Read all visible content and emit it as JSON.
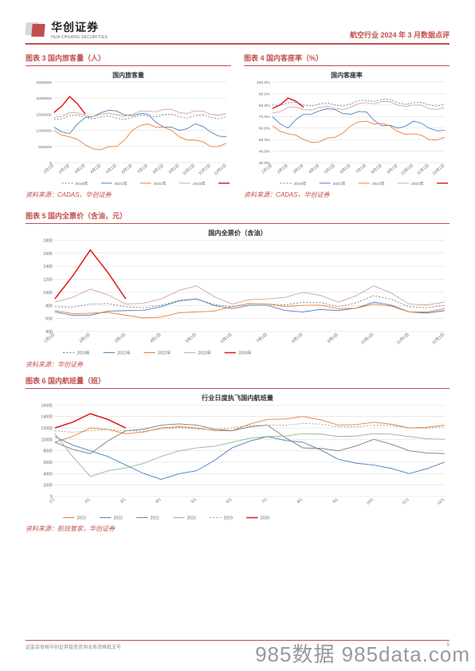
{
  "header": {
    "logo_cn": "华创证券",
    "logo_en": "HUA CHUANG SECURITIES",
    "doc_title": "航空行业 2024 年 3 月数据点评"
  },
  "footer": {
    "left_text": "证监会审核华创证券投资咨询业务资格批文号",
    "page_number": "5"
  },
  "watermark": {
    "text": "985数据 985data.com"
  },
  "colors": {
    "accent": "#c0504d",
    "grid": "#d9d9d9",
    "bg": "#ffffff",
    "s2019": "#7f7f7f",
    "s2020": "#8fbb8b",
    "s2021": "#4f81bd",
    "s2022": "#ed7d31",
    "s2023": "#d4a6a6",
    "s2024": "#e41a1c"
  },
  "chart3": {
    "fig_label": "图表 3  国内旅客量（人）",
    "type": "line",
    "title": "国内旅客量",
    "title_fontsize": 8,
    "label_fontsize": 5,
    "y_min": 0,
    "y_max": 2500000,
    "y_step": 500000,
    "y_ticks": [
      "0",
      "500000",
      "1000000",
      "1500000",
      "2000000",
      "2500000"
    ],
    "x_labels": [
      "1月1日",
      "2月1日",
      "3月1日",
      "4月1日",
      "5月1日",
      "6月1日",
      "7月1日",
      "8月1日",
      "9月1日",
      "10月1日",
      "11月1日",
      "12月1日"
    ],
    "series": [
      {
        "name": "2019年",
        "color": "#7f7f7f",
        "dash": "2,2",
        "data": [
          1350000,
          1450000,
          1400000,
          1420000,
          1380000,
          1400000,
          1450000,
          1480000,
          1420000,
          1450000,
          1400000,
          1420000
        ]
      },
      {
        "name": "2021年",
        "color": "#4f81bd",
        "dash": "0",
        "data": [
          1100000,
          900000,
          1400000,
          1550000,
          1600000,
          1450000,
          1500000,
          1100000,
          1000000,
          1200000,
          950000,
          800000
        ]
      },
      {
        "name": "2022年",
        "color": "#ed7d31",
        "dash": "0",
        "data": [
          1000000,
          800000,
          550000,
          400000,
          500000,
          1000000,
          1200000,
          1100000,
          800000,
          700000,
          500000,
          600000
        ]
      },
      {
        "name": "2023年",
        "color": "#d4a6a6",
        "dash": "0",
        "data": [
          1400000,
          1550000,
          1450000,
          1500000,
          1480000,
          1500000,
          1600000,
          1650000,
          1550000,
          1600000,
          1500000,
          1520000
        ]
      },
      {
        "name": "2024年",
        "color": "#e41a1c",
        "dash": "0",
        "width": 1.5,
        "data": [
          1550000,
          2050000,
          1500000,
          null,
          null,
          null,
          null,
          null,
          null,
          null,
          null,
          null
        ]
      }
    ],
    "source": "资料来源：CADAS，华创证券"
  },
  "chart4": {
    "fig_label": "图表 4  国内客座率（%）",
    "type": "line",
    "title": "国内客座率",
    "title_fontsize": 8,
    "label_fontsize": 5,
    "y_min": 30,
    "y_max": 100,
    "y_step": 10,
    "y_ticks": [
      "30.0%",
      "40.0%",
      "50.0%",
      "60.0%",
      "70.0%",
      "80.0%",
      "90.0%",
      "100.0%"
    ],
    "x_labels": [
      "1月1日",
      "2月1日",
      "3月1日",
      "4月1日",
      "5月1日",
      "6月1日",
      "7月1日",
      "8月1日",
      "9月1日",
      "10月1日",
      "11月1日",
      "12月1日"
    ],
    "series": [
      {
        "name": "2019年",
        "color": "#7f7f7f",
        "dash": "2,2",
        "data": [
          80,
          82,
          80,
          81,
          80,
          81,
          84,
          85,
          82,
          82,
          80,
          81
        ]
      },
      {
        "name": "2021年",
        "color": "#4f81bd",
        "dash": "0",
        "data": [
          70,
          60,
          72,
          75,
          76,
          72,
          74,
          62,
          60,
          66,
          60,
          58
        ]
      },
      {
        "name": "2022年",
        "color": "#ed7d31",
        "dash": "0",
        "data": [
          62,
          55,
          50,
          48,
          52,
          62,
          66,
          64,
          57,
          55,
          50,
          52
        ]
      },
      {
        "name": "2023年",
        "color": "#d4a6a6",
        "dash": "0",
        "data": [
          73,
          78,
          76,
          78,
          77,
          78,
          82,
          83,
          80,
          80,
          77,
          78
        ]
      },
      {
        "name": "2024年",
        "color": "#e41a1c",
        "dash": "0",
        "width": 1.5,
        "data": [
          77,
          86,
          78,
          null,
          null,
          null,
          null,
          null,
          null,
          null,
          null,
          null
        ]
      }
    ],
    "source": "资料来源：CADAS，华创证券"
  },
  "chart5": {
    "fig_label": "图表 5  国内全票价（含油，元）",
    "type": "line",
    "title": "国内全票价（含油）",
    "title_fontsize": 8,
    "label_fontsize": 5,
    "y_min": 400,
    "y_max": 1800,
    "y_step": 200,
    "y_ticks": [
      "400",
      "600",
      "800",
      "1000",
      "1200",
      "1400",
      "1600",
      "1800"
    ],
    "x_labels": [
      "1月1日",
      "2月1日",
      "3月1日",
      "4月1日",
      "5月1日",
      "6月1日",
      "7月1日",
      "8月1日",
      "9月1日",
      "10月1日",
      "11月1日",
      "12月1日"
    ],
    "series": [
      {
        "name": "2019年",
        "color": "#7f7f7f",
        "dash": "2,2",
        "data": [
          780,
          820,
          780,
          800,
          900,
          780,
          820,
          850,
          780,
          950,
          780,
          800
        ]
      },
      {
        "name": "2021年",
        "color": "#4f81bd",
        "dash": "0",
        "data": [
          700,
          650,
          720,
          780,
          900,
          750,
          800,
          700,
          720,
          850,
          700,
          720
        ]
      },
      {
        "name": "2022年",
        "color": "#ed7d31",
        "dash": "0",
        "data": [
          720,
          680,
          650,
          620,
          700,
          780,
          820,
          800,
          750,
          820,
          700,
          750
        ]
      },
      {
        "name": "2023年",
        "color": "#d4a6a6",
        "dash": "0",
        "data": [
          850,
          1050,
          820,
          900,
          1100,
          820,
          900,
          1000,
          850,
          1100,
          820,
          850
        ]
      },
      {
        "name": "2024年",
        "color": "#e41a1c",
        "dash": "0",
        "width": 1.5,
        "data": [
          900,
          1650,
          900,
          null,
          null,
          null,
          null,
          null,
          null,
          null,
          null,
          null
        ]
      }
    ],
    "source": "资料来源：华创证券"
  },
  "chart6": {
    "fig_label": "图表 6  国内航班量（班）",
    "type": "line",
    "title": "行业日度执飞国内航班量",
    "title_fontsize": 8,
    "label_fontsize": 5,
    "y_min": 0,
    "y_max": 16000,
    "y_step": 2000,
    "y_ticks": [
      "0",
      "2000",
      "4000",
      "6000",
      "8000",
      "10000",
      "12000",
      "14000",
      "16000"
    ],
    "x_labels": [
      "1/1",
      "2/1",
      "3/1",
      "4/1",
      "5/1",
      "6/1",
      "7/1",
      "8/1",
      "9/1",
      "10/1",
      "11/1",
      "12/1"
    ],
    "series": [
      {
        "name": "2023",
        "color": "#ed7d31",
        "dash": "0",
        "data": [
          9500,
          12000,
          11000,
          12000,
          12000,
          11500,
          13500,
          14000,
          12500,
          13000,
          12000,
          12500
        ]
      },
      {
        "name": "2022",
        "color": "#4f81bd",
        "dash": "0",
        "data": [
          10500,
          8000,
          5500,
          3000,
          4500,
          8500,
          10500,
          9500,
          6500,
          5500,
          4000,
          6000
        ]
      },
      {
        "name": "2021",
        "color": "#7f7f7f",
        "dash": "0",
        "data": [
          9500,
          7500,
          11500,
          12500,
          12500,
          11500,
          12500,
          8500,
          8000,
          10000,
          8000,
          7500
        ]
      },
      {
        "name": "2020",
        "color": "#8fbb8b",
        "dash": "0",
        "data": [
          11000,
          3500,
          5000,
          7000,
          8500,
          9500,
          10500,
          11000,
          10500,
          11000,
          10500,
          10000
        ]
      },
      {
        "name": "2019",
        "color": "#a0a0a0",
        "dash": "2,2",
        "data": [
          11500,
          11500,
          11500,
          11800,
          11800,
          12000,
          12500,
          12800,
          12200,
          12500,
          12000,
          12200
        ]
      },
      {
        "name": "2024",
        "color": "#e41a1c",
        "dash": "0",
        "width": 1.5,
        "data": [
          12000,
          14500,
          12000,
          null,
          null,
          null,
          null,
          null,
          null,
          null,
          null,
          null
        ]
      }
    ],
    "source": "资料来源：航班管家，华创证券"
  }
}
